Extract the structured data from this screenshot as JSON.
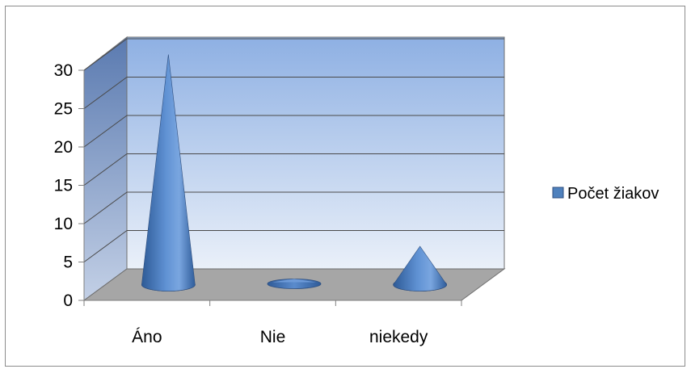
{
  "chart_data": {
    "type": "bar",
    "style": "3d-cone",
    "categories": [
      "Áno",
      "Nie",
      "niekedy"
    ],
    "series": [
      {
        "name": "Počet žiakov",
        "values": [
          30,
          0,
          5
        ],
        "color": "#4f81bd"
      }
    ],
    "ylim": [
      0,
      30
    ],
    "yticks": [
      0,
      5,
      10,
      15,
      20,
      25,
      30
    ],
    "ytick_labels": [
      "0",
      "5",
      "10",
      "15",
      "20",
      "25",
      "30"
    ],
    "grid": true,
    "legend": "right"
  }
}
